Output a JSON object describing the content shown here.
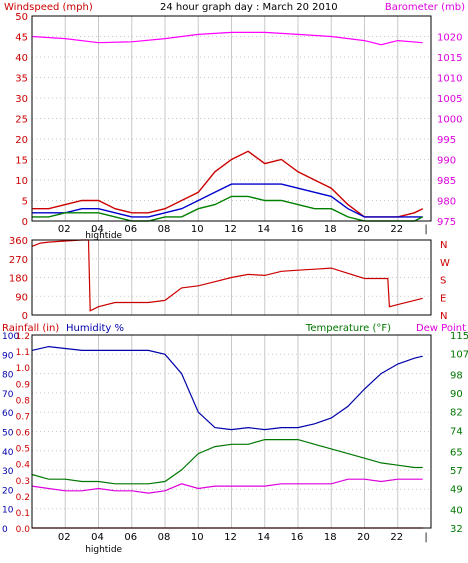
{
  "title": "24 hour graph day : March 20 2010",
  "colors": {
    "wind": "#ff0000",
    "gust": "#cc0000",
    "avg": "#0000cc",
    "calm": "#008000",
    "baro": "#ff00ff",
    "dir": "#cc0000",
    "humidity": "#0000aa",
    "temperature": "#007700",
    "dewpoint": "#dd00dd",
    "rain": "#cc0000",
    "tide": "#000000",
    "grid": "#c8c8c8",
    "frame": "#000000",
    "bg": "#ffffff"
  },
  "x_ticks": [
    "02",
    "04",
    "06",
    "08",
    "10",
    "12",
    "14",
    "16",
    "18",
    "20",
    "22",
    "|"
  ],
  "tide_label": "hightide",
  "tide_hours": [
    3.5
  ],
  "chart_data": [
    {
      "type": "line",
      "left_label": "Windspeed (mph)",
      "right_label": "Barometer (mb)",
      "left_ticks": [
        "0",
        "5",
        "10",
        "15",
        "20",
        "25",
        "30",
        "35",
        "40",
        "45",
        "50"
      ],
      "right_ticks": [
        "975",
        "980",
        "985",
        "990",
        "995",
        "1000",
        "1005",
        "1010",
        "1015",
        "1020"
      ],
      "left_range": [
        0,
        50
      ],
      "right_range": [
        975,
        1025
      ],
      "x_range": [
        0,
        24
      ],
      "series": [
        {
          "key": "baro",
          "axis": "right",
          "x": [
            0,
            2,
            4,
            6,
            8,
            10,
            12,
            14,
            16,
            18,
            20,
            21,
            22,
            23.5
          ],
          "y": [
            1020,
            1019.5,
            1018.5,
            1018.7,
            1019.5,
            1020.5,
            1021,
            1021,
            1020.5,
            1020,
            1019,
            1018,
            1019,
            1018.5
          ]
        },
        {
          "key": "gust",
          "axis": "left",
          "x": [
            0,
            1,
            2,
            3,
            4,
            5,
            6,
            7,
            8,
            9,
            10,
            11,
            12,
            13,
            14,
            15,
            16,
            17,
            18,
            19,
            20,
            21,
            22,
            23,
            23.5
          ],
          "y": [
            3,
            3,
            4,
            5,
            5,
            3,
            2,
            2,
            3,
            5,
            7,
            12,
            15,
            17,
            14,
            15,
            12,
            10,
            8,
            4,
            1,
            1,
            1,
            2,
            3
          ]
        },
        {
          "key": "avg",
          "axis": "left",
          "x": [
            0,
            1,
            2,
            3,
            4,
            5,
            6,
            7,
            8,
            9,
            10,
            11,
            12,
            13,
            14,
            15,
            16,
            17,
            18,
            19,
            20,
            21,
            22,
            23,
            23.5
          ],
          "y": [
            2,
            2,
            2,
            3,
            3,
            2,
            1,
            1,
            2,
            3,
            5,
            7,
            9,
            9,
            9,
            9,
            8,
            7,
            6,
            3,
            1,
            1,
            1,
            1,
            1
          ]
        },
        {
          "key": "calm",
          "axis": "left",
          "x": [
            0,
            1,
            2,
            3,
            4,
            5,
            6,
            7,
            8,
            9,
            10,
            11,
            12,
            13,
            14,
            15,
            16,
            17,
            18,
            19,
            20,
            21,
            22,
            23,
            23.5
          ],
          "y": [
            1,
            1,
            2,
            2,
            2,
            1,
            0,
            0,
            1,
            1,
            3,
            4,
            6,
            6,
            5,
            5,
            4,
            3,
            3,
            1,
            0,
            0,
            0,
            0,
            1
          ]
        }
      ]
    },
    {
      "type": "line",
      "left_ticks": [
        "0",
        "90",
        "180",
        "270",
        "360"
      ],
      "right_ticks": [
        "N",
        "W",
        "S",
        "E",
        "N"
      ],
      "left_range": [
        0,
        360
      ],
      "x_range": [
        0,
        24
      ],
      "series": [
        {
          "key": "dir",
          "x": [
            0,
            0.5,
            1,
            2,
            3,
            3.4,
            3.5,
            4,
            5,
            6,
            7,
            8,
            9,
            10,
            11,
            12,
            13,
            14,
            15,
            16,
            17,
            18,
            19,
            20,
            21,
            21.4,
            21.5,
            22,
            23,
            23.5
          ],
          "y": [
            330,
            345,
            350,
            355,
            360,
            360,
            20,
            40,
            60,
            60,
            60,
            70,
            130,
            140,
            160,
            180,
            195,
            190,
            210,
            215,
            220,
            225,
            200,
            175,
            175,
            175,
            40,
            50,
            70,
            80
          ]
        }
      ]
    },
    {
      "type": "line",
      "left_labels": [
        "Rainfall (in)",
        "Humidity %"
      ],
      "right_labels": [
        "Temperature (°F)",
        "Dew Point"
      ],
      "humidity_ticks": [
        "0",
        "10",
        "20",
        "30",
        "40",
        "50",
        "60",
        "70",
        "80",
        "90",
        "100"
      ],
      "rain_ticks": [
        "0.0",
        "0.1",
        "0.2",
        "0.3",
        "0.4",
        "0.5",
        "0.6",
        "0.7",
        "0.8",
        "0.9",
        "1.0",
        "1.1",
        "1.2"
      ],
      "temp_ticks": [
        "32",
        "40",
        "49",
        "57",
        "65",
        "74",
        "82",
        "90",
        "98",
        "107",
        "115"
      ],
      "humidity_range": [
        0,
        100
      ],
      "rain_range": [
        0,
        1.2
      ],
      "temp_range": [
        32,
        115
      ],
      "x_range": [
        0,
        24
      ],
      "series": [
        {
          "key": "humidity",
          "axis": "humidity",
          "x": [
            0,
            1,
            2,
            3,
            4,
            5,
            6,
            7,
            8,
            9,
            10,
            11,
            12,
            13,
            14,
            15,
            16,
            17,
            18,
            19,
            20,
            21,
            22,
            23,
            23.5
          ],
          "y": [
            92,
            94,
            93,
            92,
            92,
            92,
            92,
            92,
            90,
            80,
            60,
            52,
            51,
            52,
            51,
            52,
            52,
            54,
            57,
            63,
            72,
            80,
            85,
            88,
            89
          ]
        },
        {
          "key": "temperature",
          "axis": "temp",
          "x": [
            0,
            1,
            2,
            3,
            4,
            5,
            6,
            7,
            8,
            9,
            10,
            11,
            12,
            13,
            14,
            15,
            16,
            17,
            18,
            19,
            20,
            21,
            22,
            23,
            23.5
          ],
          "y": [
            55,
            53,
            53,
            52,
            52,
            51,
            51,
            51,
            52,
            57,
            64,
            67,
            68,
            68,
            70,
            70,
            70,
            68,
            66,
            64,
            62,
            60,
            59,
            58,
            58
          ]
        },
        {
          "key": "dewpoint",
          "axis": "temp",
          "x": [
            0,
            1,
            2,
            3,
            4,
            5,
            6,
            7,
            8,
            9,
            10,
            11,
            12,
            13,
            14,
            15,
            16,
            17,
            18,
            19,
            20,
            21,
            22,
            23,
            23.5
          ],
          "y": [
            50,
            49,
            48,
            48,
            49,
            48,
            48,
            47,
            48,
            51,
            49,
            50,
            50,
            50,
            50,
            51,
            51,
            51,
            51,
            53,
            53,
            52,
            53,
            53,
            53
          ]
        },
        {
          "key": "rain",
          "axis": "rain",
          "x": [
            0,
            23.5
          ],
          "y": [
            0,
            0
          ]
        }
      ]
    }
  ]
}
